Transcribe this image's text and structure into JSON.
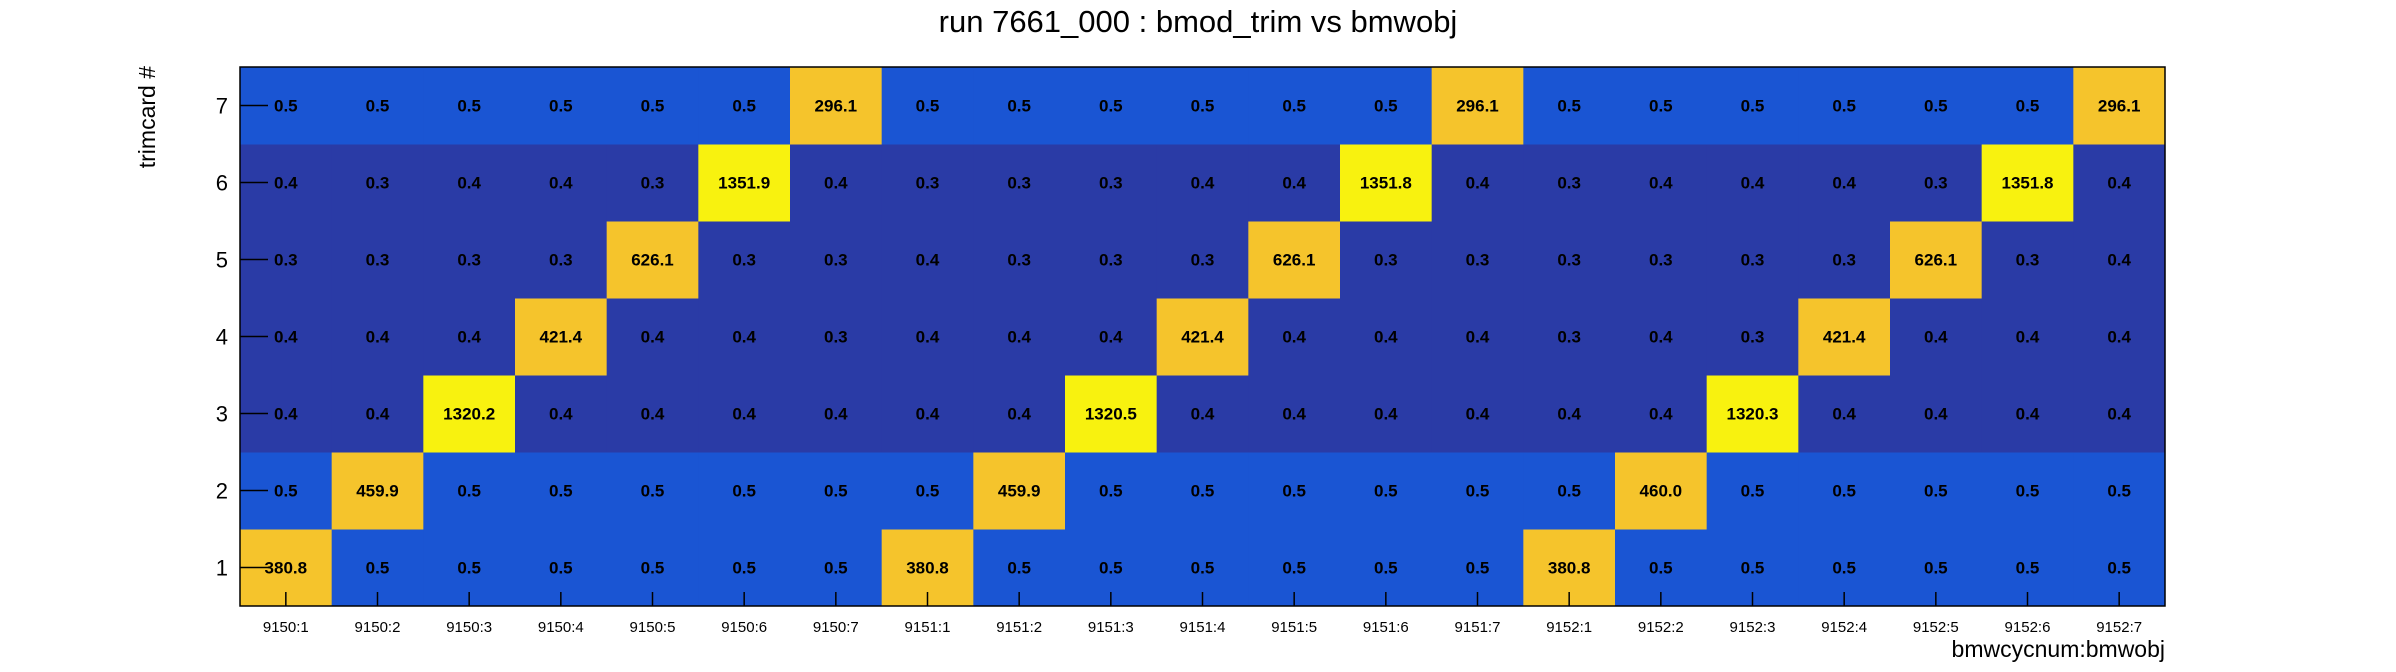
{
  "chart_data": {
    "type": "heatmap",
    "title": "run 7661_000 : bmod_trim vs bmwobj",
    "xlabel": "bmwcycnum:bmwobj",
    "ylabel": "trimcard #",
    "x_categories": [
      "9150:1",
      "9150:2",
      "9150:3",
      "9150:4",
      "9150:5",
      "9150:6",
      "9150:7",
      "9151:1",
      "9151:2",
      "9151:3",
      "9151:4",
      "9151:5",
      "9151:6",
      "9151:7",
      "9152:1",
      "9152:2",
      "9152:3",
      "9152:4",
      "9152:5",
      "9152:6",
      "9152:7"
    ],
    "y_categories": [
      "1",
      "2",
      "3",
      "4",
      "5",
      "6",
      "7"
    ],
    "values": [
      [
        "380.8",
        "0.5",
        "0.5",
        "0.5",
        "0.5",
        "0.5",
        "0.5",
        "380.8",
        "0.5",
        "0.5",
        "0.5",
        "0.5",
        "0.5",
        "0.5",
        "380.8",
        "0.5",
        "0.5",
        "0.5",
        "0.5",
        "0.5",
        "0.5"
      ],
      [
        "0.5",
        "459.9",
        "0.5",
        "0.5",
        "0.5",
        "0.5",
        "0.5",
        "0.5",
        "459.9",
        "0.5",
        "0.5",
        "0.5",
        "0.5",
        "0.5",
        "0.5",
        "460.0",
        "0.5",
        "0.5",
        "0.5",
        "0.5",
        "0.5"
      ],
      [
        "0.4",
        "0.4",
        "1320.2",
        "0.4",
        "0.4",
        "0.4",
        "0.4",
        "0.4",
        "0.4",
        "1320.5",
        "0.4",
        "0.4",
        "0.4",
        "0.4",
        "0.4",
        "0.4",
        "1320.3",
        "0.4",
        "0.4",
        "0.4",
        "0.4"
      ],
      [
        "0.4",
        "0.4",
        "0.4",
        "421.4",
        "0.4",
        "0.4",
        "0.3",
        "0.4",
        "0.4",
        "0.4",
        "421.4",
        "0.4",
        "0.4",
        "0.4",
        "0.3",
        "0.4",
        "0.3",
        "421.4",
        "0.4",
        "0.4",
        "0.4"
      ],
      [
        "0.3",
        "0.3",
        "0.3",
        "0.3",
        "626.1",
        "0.3",
        "0.3",
        "0.4",
        "0.3",
        "0.3",
        "0.3",
        "626.1",
        "0.3",
        "0.3",
        "0.3",
        "0.3",
        "0.3",
        "0.3",
        "626.1",
        "0.3",
        "0.4"
      ],
      [
        "0.4",
        "0.3",
        "0.4",
        "0.4",
        "0.3",
        "1351.9",
        "0.4",
        "0.3",
        "0.3",
        "0.3",
        "0.4",
        "0.4",
        "1351.8",
        "0.4",
        "0.3",
        "0.4",
        "0.4",
        "0.4",
        "0.3",
        "1351.8",
        "0.4"
      ],
      [
        "0.5",
        "0.5",
        "0.5",
        "0.5",
        "0.5",
        "0.5",
        "296.1",
        "0.5",
        "0.5",
        "0.5",
        "0.5",
        "0.5",
        "0.5",
        "296.1",
        "0.5",
        "0.5",
        "0.5",
        "0.5",
        "0.5",
        "0.5",
        "296.1"
      ]
    ],
    "colors": {
      "low": "#2a3ba6",
      "mid": "#1a55d3",
      "high": "#f5c42c",
      "max": "#f8f20f"
    },
    "grid": false,
    "legend": "none"
  }
}
